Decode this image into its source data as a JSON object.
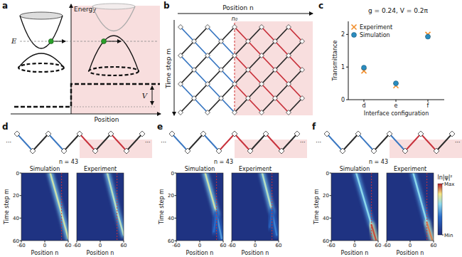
{
  "panel_a": {
    "label": "a",
    "y_axis": "Energy",
    "x_axis": "Position",
    "energy_label": "E",
    "potential_label": "V"
  },
  "panel_b": {
    "label": "b",
    "x_axis": "Position n",
    "interface_label": "n₀",
    "y_axis": "Time step m"
  },
  "chart_data": {
    "panel_label": "c",
    "type": "scatter",
    "title": "g = 0.24, V = 0.2π",
    "categories": [
      "d",
      "e",
      "f"
    ],
    "x_label": "Interface configuration",
    "y_label": "Transmittance",
    "ylim": [
      0,
      2.4
    ],
    "yticks": [
      0,
      1,
      2
    ],
    "legend": "top-left",
    "series": [
      {
        "name": "Experiment",
        "color": "#f28e2b",
        "marker": "x",
        "values": [
          0.88,
          0.43,
          2.0
        ]
      },
      {
        "name": "Simulation",
        "color": "#2a8cbf",
        "marker": "circle",
        "values": [
          0.98,
          0.5,
          1.93
        ]
      }
    ]
  },
  "chain_ellipsis": "···",
  "heatmap_axes": {
    "x_label": "Position n",
    "y_label": "Time step m",
    "xlim": [
      -60,
      60
    ],
    "xticks": [
      -60,
      0,
      60
    ],
    "ylim": [
      0,
      60
    ],
    "yticks": [
      0,
      20,
      40,
      60
    ]
  },
  "color_bar": {
    "label": "ln|ψ|²",
    "range": [
      0,
      1
    ],
    "ticks": [
      {
        "value": 1,
        "label": "Max"
      },
      {
        "value": 0,
        "label": "Min"
      }
    ]
  },
  "panels": [
    {
      "label": "d",
      "interface": {
        "label": "n = 43",
        "n": 43
      },
      "segment_colors": [
        "#3b78c2",
        "#2b2b2b",
        "#3b78c2",
        "#2b2b2b",
        "#c8323c",
        "#2b2b2b",
        "#c8323c",
        "#2b2b2b"
      ],
      "heatmaps": [
        {
          "title": "Simulation",
          "beams": [
            {
              "n": [
                14,
                43,
                60
              ],
              "m": [
                0,
                36,
                58
              ],
              "intensity": 0.72
            }
          ]
        },
        {
          "title": "Experiment",
          "beams": [
            {
              "n": [
                18,
                43,
                60
              ],
              "m": [
                0,
                34,
                55
              ],
              "intensity": 0.68
            }
          ]
        }
      ]
    },
    {
      "label": "e",
      "interface": {
        "label": "n = 43",
        "n": 43
      },
      "segment_colors": [
        "#3b78c2",
        "#2b2b2b",
        "#3b78c2",
        "#c8323c",
        "#c8323c",
        "#2b2b2b",
        "#c8323c",
        "#2b2b2b"
      ],
      "heatmaps": [
        {
          "title": "Simulation",
          "beams": [
            {
              "n": [
                14,
                43
              ],
              "m": [
                0,
                36
              ],
              "intensity": 0.72
            },
            {
              "n": [
                43,
                56
              ],
              "m": [
                36,
                58
              ],
              "intensity": 0.45
            },
            {
              "n": [
                43,
                36
              ],
              "m": [
                36,
                52
              ],
              "intensity": 0.35
            }
          ]
        },
        {
          "title": "Experiment",
          "beams": [
            {
              "n": [
                18,
                43
              ],
              "m": [
                0,
                34
              ],
              "intensity": 0.68
            },
            {
              "n": [
                43,
                55
              ],
              "m": [
                34,
                55
              ],
              "intensity": 0.4
            },
            {
              "n": [
                43,
                37
              ],
              "m": [
                34,
                48
              ],
              "intensity": 0.3
            }
          ]
        }
      ]
    },
    {
      "label": "f",
      "interface": {
        "label": "n = 43",
        "n": 43
      },
      "segment_colors": [
        "#3b78c2",
        "#2b2b2b",
        "#3b78c2",
        "#2b2b2b",
        "#3b78c2",
        "#c8323c",
        "#c8323c",
        "#2b2b2b"
      ],
      "heatmaps": [
        {
          "title": "Simulation",
          "beams": [
            {
              "n": [
                4,
                43
              ],
              "m": [
                0,
                46
              ],
              "intensity": 0.6
            },
            {
              "n": [
                43,
                55
              ],
              "m": [
                46,
                60
              ],
              "intensity": 0.95
            }
          ]
        },
        {
          "title": "Experiment",
          "beams": [
            {
              "n": [
                8,
                43
              ],
              "m": [
                0,
                44
              ],
              "intensity": 0.6
            },
            {
              "n": [
                43,
                57
              ],
              "m": [
                44,
                60
              ],
              "intensity": 0.9
            }
          ]
        }
      ]
    }
  ]
}
